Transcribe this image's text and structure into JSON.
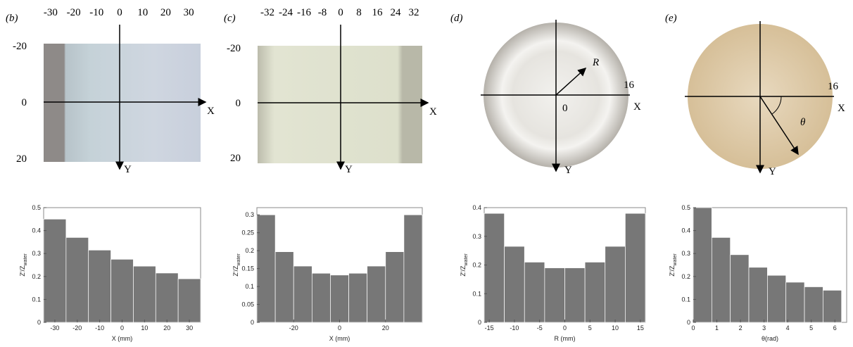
{
  "photos": [
    {
      "label": "(b)",
      "kind": "rect",
      "xticks": [
        -30,
        -20,
        -10,
        0,
        10,
        20,
        30
      ],
      "yticks": [
        -20,
        0,
        20
      ],
      "x_label": "X",
      "y_label": "Y"
    },
    {
      "label": "(c)",
      "kind": "rect",
      "xticks": [
        -32,
        -24,
        -16,
        -8,
        0,
        8,
        16,
        24,
        32
      ],
      "yticks": [
        -20,
        0,
        20
      ],
      "x_label": "X",
      "y_label": "Y"
    },
    {
      "label": "(d)",
      "kind": "disc",
      "r_label": "R",
      "edge_tick": 16,
      "origin_label": 0,
      "x_label": "X",
      "y_label": "Y"
    },
    {
      "label": "(e)",
      "kind": "disc",
      "angle_label": "θ",
      "edge_tick": 16,
      "x_label": "X",
      "y_label": "Y"
    }
  ],
  "chart_data": [
    {
      "type": "histogram",
      "bins": [
        -35,
        -25,
        -15,
        -5,
        5,
        15,
        25,
        35
      ],
      "values": [
        0.45,
        0.37,
        0.315,
        0.275,
        0.245,
        0.215,
        0.19
      ],
      "color": "#777777",
      "xlim": [
        -35,
        35
      ],
      "xticks": [
        -30,
        -20,
        -10,
        0,
        10,
        20,
        30
      ],
      "ylim": [
        0,
        0.5
      ],
      "yticks": [
        0,
        0.1,
        0.2,
        0.3,
        0.4,
        0.5
      ],
      "x_label": "X (mm)",
      "y_label": "Z'/Z",
      "y_label_sub": "water"
    },
    {
      "type": "histogram",
      "bins": [
        -36,
        -28,
        -20,
        -12,
        -4,
        4,
        12,
        20,
        28,
        36
      ],
      "values": [
        0.3,
        0.197,
        0.157,
        0.137,
        0.132,
        0.137,
        0.157,
        0.197,
        0.3
      ],
      "color": "#777777",
      "xlim": [
        -36,
        36
      ],
      "xticks": [
        -20,
        0,
        20
      ],
      "ylim": [
        0,
        0.32
      ],
      "yticks": [
        0,
        0.05,
        0.1,
        0.15,
        0.2,
        0.25,
        0.3
      ],
      "x_label": "X (mm)",
      "y_label": "Z'/Z",
      "y_label_sub": "water"
    },
    {
      "type": "histogram",
      "bins": [
        -16,
        -12,
        -8,
        -4,
        0,
        4,
        8,
        12,
        16
      ],
      "values": [
        0.38,
        0.265,
        0.21,
        0.19,
        0.19,
        0.21,
        0.265,
        0.38
      ],
      "color": "#777777",
      "xlim": [
        -16,
        16
      ],
      "xticks": [
        -15,
        -10,
        -5,
        0,
        5,
        10,
        15
      ],
      "ylim": [
        0,
        0.4
      ],
      "yticks": [
        0,
        0.1,
        0.2,
        0.3,
        0.4
      ],
      "x_label": "R (mm)",
      "y_label": "Z'/Z",
      "y_label_sub": "water"
    },
    {
      "type": "histogram",
      "bins": [
        0,
        0.785,
        1.571,
        2.356,
        3.142,
        3.927,
        4.712,
        5.498,
        6.283
      ],
      "values": [
        0.5,
        0.37,
        0.295,
        0.24,
        0.205,
        0.175,
        0.155,
        0.14
      ],
      "color": "#777777",
      "xlim": [
        0,
        6.5
      ],
      "xticks": [
        0,
        1,
        2,
        3,
        4,
        5,
        6
      ],
      "ylim": [
        0,
        0.5
      ],
      "yticks": [
        0,
        0.1,
        0.2,
        0.3,
        0.4,
        0.5
      ],
      "x_label": "θ(rad)",
      "y_label": "Z'/Z",
      "y_label_sub": "water"
    }
  ]
}
